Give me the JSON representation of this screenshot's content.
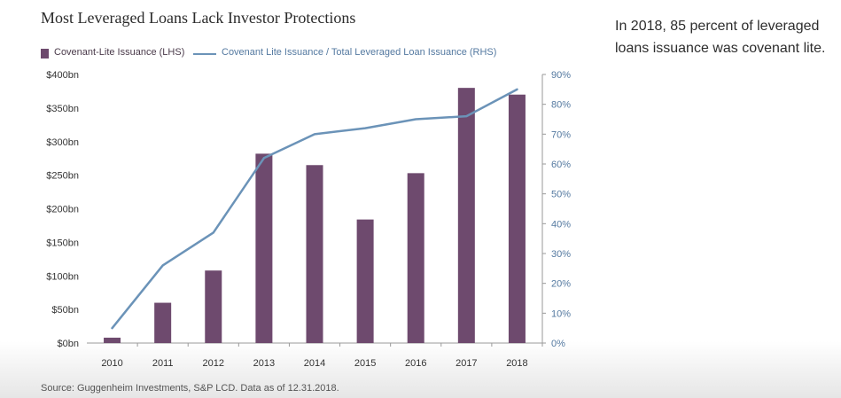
{
  "title": "Most Leveraged Loans Lack Investor Protections",
  "side_note": "In 2018, 85 percent of leveraged loans issuance was covenant lite.",
  "source": "Source: Guggenheim Investments, S&P LCD. Data as of 12.31.2018.",
  "colors": {
    "bar": "#6e4a6e",
    "line": "#6b93b8",
    "axis_right": "#5479a0"
  },
  "chart_data": {
    "type": "bar",
    "categories": [
      "2010",
      "2011",
      "2012",
      "2013",
      "2014",
      "2015",
      "2016",
      "2017",
      "2018"
    ],
    "series": [
      {
        "name": "Covenant-Lite Issuance (LHS)",
        "type": "bar",
        "axis": "left",
        "values": [
          8,
          60,
          108,
          282,
          265,
          184,
          253,
          380,
          370
        ]
      },
      {
        "name": "Covenant Lite Issuance / Total Leveraged Loan Issuance (RHS)",
        "type": "line",
        "axis": "right",
        "values": [
          5,
          26,
          37,
          62,
          70,
          72,
          75,
          76,
          85
        ]
      }
    ],
    "ylim_left": [
      0,
      400
    ],
    "ylim_right": [
      0,
      90
    ],
    "yticks_left": [
      "$0bn",
      "$50bn",
      "$100bn",
      "$150bn",
      "$200bn",
      "$250bn",
      "$300bn",
      "$350bn",
      "$400bn"
    ],
    "yticks_right": [
      "0%",
      "10%",
      "20%",
      "30%",
      "40%",
      "50%",
      "60%",
      "70%",
      "80%",
      "90%"
    ],
    "grid": false,
    "legend": "top-left"
  }
}
